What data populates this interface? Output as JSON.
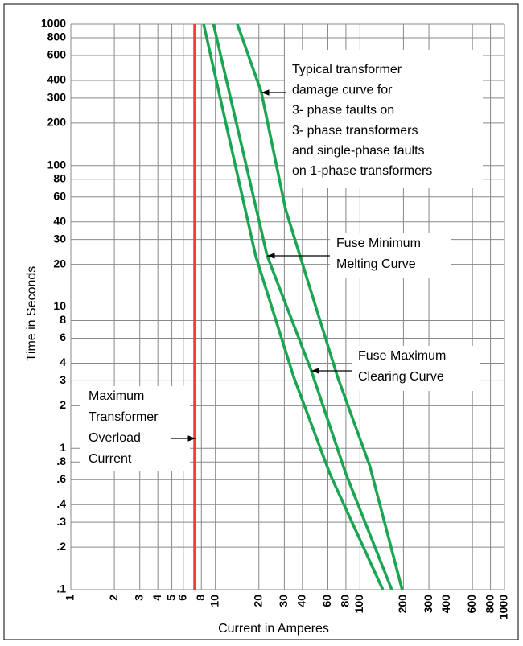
{
  "chart_data": {
    "type": "line",
    "log_x": true,
    "log_y": true,
    "grid": true,
    "xlabel": "Current in Amperes",
    "ylabel": "Time in Seconds",
    "xlim": [
      1,
      1000
    ],
    "ylim": [
      0.1,
      1000
    ],
    "xticks": [
      1,
      2,
      3,
      4,
      5,
      6,
      8,
      10,
      20,
      30,
      40,
      60,
      80,
      100,
      200,
      300,
      400,
      600,
      800,
      1000
    ],
    "yticks": [
      {
        "value": 0.1,
        "label": ".1"
      },
      {
        "value": 0.2,
        "label": ".2"
      },
      {
        "value": 0.3,
        "label": ".3"
      },
      {
        "value": 0.4,
        "label": ".4"
      },
      {
        "value": 0.6,
        "label": ".6"
      },
      {
        "value": 0.8,
        "label": ".8"
      },
      1,
      2,
      3,
      4,
      6,
      8,
      10,
      20,
      30,
      40,
      60,
      80,
      100,
      200,
      300,
      400,
      600,
      800,
      1000
    ],
    "series": [
      {
        "color": "#f03c3c",
        "x": [
          7.2,
          7.2
        ],
        "values": [
          0.1,
          1000
        ]
      },
      {
        "color": "#1ba552",
        "x": [
          8.3,
          19,
          34.8,
          62,
          144
        ],
        "values": [
          1000,
          23,
          3.2,
          0.66,
          0.1
        ]
      },
      {
        "color": "#1ba552",
        "x": [
          9.7,
          22.8,
          46,
          80,
          166
        ],
        "values": [
          1000,
          23,
          3.56,
          0.66,
          0.1
        ]
      },
      {
        "color": "#1ba552",
        "x": [
          14.2,
          20.8,
          30.6,
          70,
          117,
          196
        ],
        "values": [
          1000,
          330,
          49,
          3.2,
          0.75,
          0.1
        ]
      }
    ],
    "annotations": [
      {
        "lines": [
          "Typical transformer",
          "damage curve for",
          "3- phase faults on",
          "3- phase transformers",
          "and single-phase faults",
          "on 1-phase transformers"
        ]
      },
      {
        "lines": [
          "Fuse Minimum",
          "Melting Curve"
        ]
      },
      {
        "lines": [
          "Fuse Maximum",
          "Clearing Curve"
        ]
      },
      {
        "lines": [
          "Maximum",
          "Transformer",
          "Overload",
          "Current"
        ]
      }
    ]
  }
}
